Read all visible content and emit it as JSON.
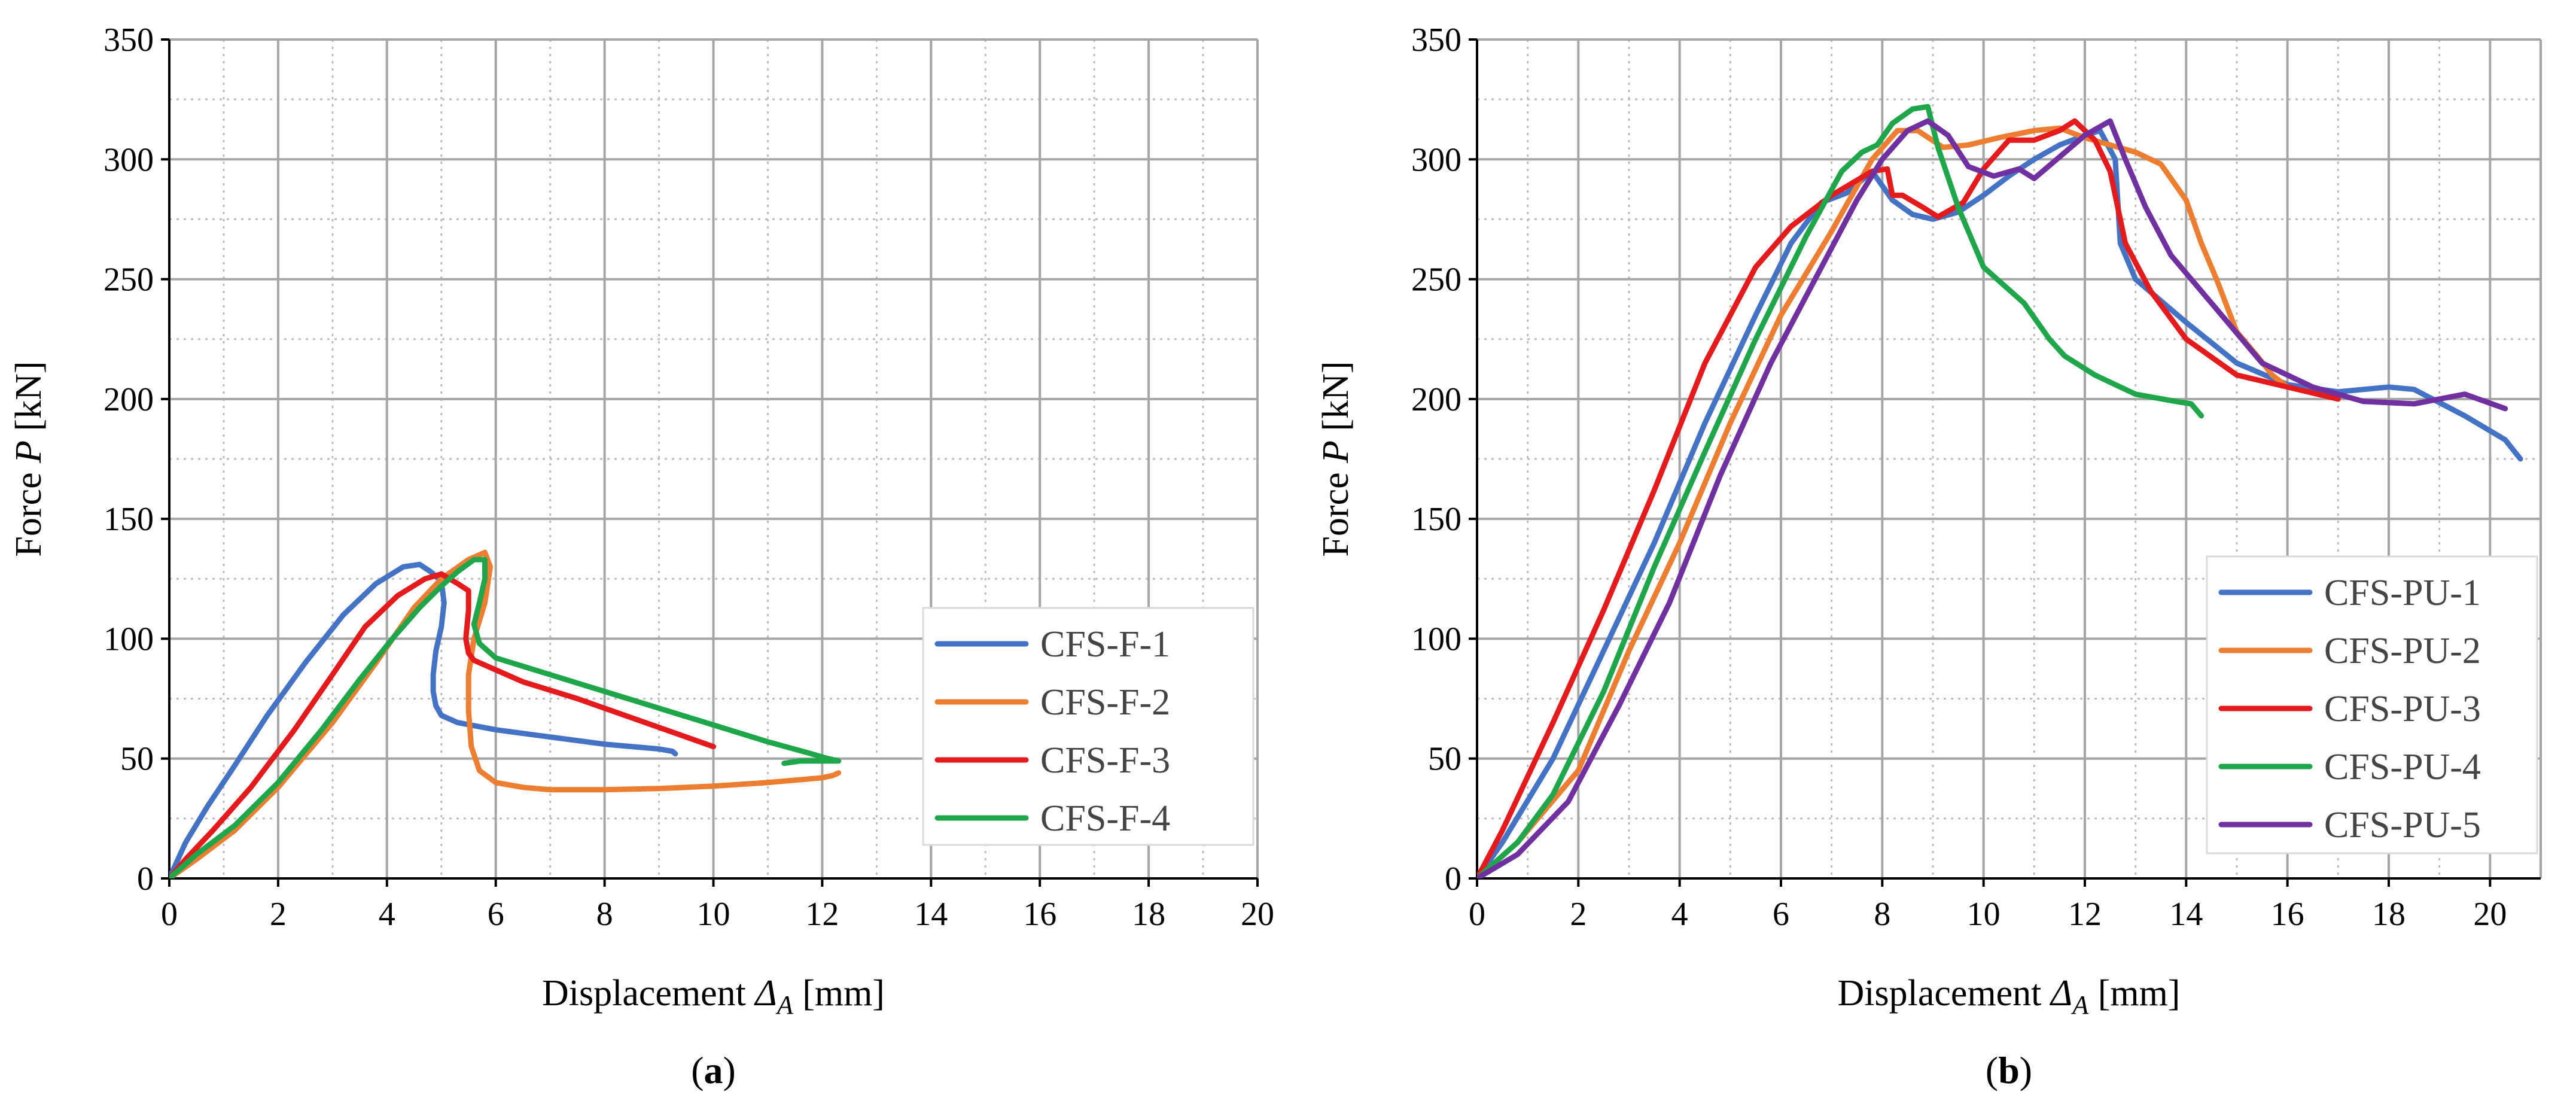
{
  "chart_data": [
    {
      "type": "line",
      "panel_label": "(a)",
      "panel_letter": "a",
      "xlabel": "Displacement",
      "xsymbol": "Δ",
      "xsub": "A",
      "xunit": "[mm]",
      "ylabel": "Force",
      "ysymbol": "P",
      "yunit": "[kN]",
      "xlim": [
        0,
        20
      ],
      "ylim": [
        0,
        350
      ],
      "xticks": [
        0,
        2,
        4,
        6,
        8,
        10,
        12,
        14,
        16,
        18,
        20
      ],
      "yticks": [
        0,
        50,
        100,
        150,
        200,
        250,
        300,
        350
      ],
      "grid": true,
      "legend_position": "bottom-right",
      "series": [
        {
          "name": "CFS-F-1",
          "color": "#4472C4",
          "x": [
            0,
            0.3,
            0.7,
            1.2,
            1.8,
            2.5,
            3.2,
            3.8,
            4.3,
            4.6,
            4.8,
            5.0,
            5.05,
            5.0,
            4.9,
            4.85,
            4.85,
            4.9,
            5.0,
            5.3,
            6.0,
            7.0,
            8.0,
            9.0,
            9.25,
            9.3
          ],
          "y": [
            0,
            15,
            30,
            47,
            68,
            90,
            110,
            123,
            130,
            131,
            128,
            124,
            115,
            105,
            95,
            85,
            78,
            72,
            68,
            65,
            62,
            59,
            56,
            54,
            53,
            52
          ]
        },
        {
          "name": "CFS-F-2",
          "color": "#ED7D31",
          "x": [
            0,
            0.5,
            1.2,
            2.0,
            3.0,
            3.8,
            4.5,
            5.0,
            5.5,
            5.8,
            5.9,
            5.8,
            5.6,
            5.5,
            5.5,
            5.55,
            5.7,
            6.0,
            6.5,
            7.0,
            8.0,
            9.0,
            10.0,
            11.0,
            11.5,
            12.0,
            12.2,
            12.3
          ],
          "y": [
            0,
            8,
            20,
            38,
            65,
            90,
            113,
            125,
            133,
            136,
            130,
            115,
            100,
            85,
            70,
            55,
            45,
            40,
            38,
            37,
            37,
            37.5,
            38.5,
            40,
            41,
            42,
            43,
            44
          ]
        },
        {
          "name": "CFS-F-3",
          "color": "#E41A1C",
          "x": [
            0,
            0.3,
            0.8,
            1.5,
            2.3,
            3.0,
            3.6,
            4.2,
            4.7,
            5.0,
            5.3,
            5.5,
            5.5,
            5.45,
            5.5,
            5.6,
            6.0,
            6.5,
            7.5,
            8.5,
            9.5,
            10.0
          ],
          "y": [
            0,
            8,
            20,
            38,
            62,
            85,
            105,
            118,
            125,
            127,
            123,
            120,
            112,
            100,
            94,
            91,
            87,
            82,
            75,
            67,
            59,
            55
          ]
        },
        {
          "name": "CFS-F-4",
          "color": "#1FA64A",
          "x": [
            0,
            0.5,
            1.2,
            2.0,
            2.8,
            3.5,
            4.1,
            4.6,
            5.0,
            5.3,
            5.6,
            5.8,
            5.8,
            5.7,
            5.6,
            5.7,
            6.0,
            7.0,
            8.0,
            9.0,
            10.0,
            11.0,
            11.8,
            12.1,
            12.3,
            11.6,
            11.3
          ],
          "y": [
            0,
            10,
            22,
            40,
            62,
            83,
            100,
            113,
            122,
            128,
            133,
            133,
            125,
            115,
            106,
            98,
            92,
            85,
            78,
            71,
            64,
            57,
            52,
            50,
            49,
            49,
            48
          ]
        }
      ],
      "annotations": []
    },
    {
      "type": "line",
      "panel_label": "(b)",
      "panel_letter": "b",
      "xlabel": "Displacement",
      "xsymbol": "Δ",
      "xsub": "A",
      "xunit": "[mm]",
      "ylabel": "Force",
      "ysymbol": "P",
      "yunit": "[kN]",
      "xlim": [
        0,
        21
      ],
      "ylim": [
        0,
        350
      ],
      "xticks": [
        0,
        2,
        4,
        6,
        8,
        10,
        12,
        14,
        16,
        18,
        20
      ],
      "yticks": [
        0,
        50,
        100,
        150,
        200,
        250,
        300,
        350
      ],
      "grid": true,
      "legend_position": "bottom-right",
      "series": [
        {
          "name": "CFS-PU-1",
          "color": "#4472C4",
          "x": [
            0,
            0.5,
            1.5,
            2.5,
            3.5,
            4.5,
            5.5,
            6.2,
            6.8,
            7.3,
            7.8,
            8.2,
            8.6,
            9.0,
            9.5,
            10.0,
            10.5,
            11.0,
            11.5,
            12.0,
            12.3,
            12.6,
            12.7,
            13.0,
            14.0,
            15.0,
            16.0,
            17.0,
            18.0,
            18.5,
            19.5,
            20.3,
            20.6
          ],
          "y": [
            0,
            15,
            50,
            95,
            140,
            190,
            235,
            265,
            282,
            286,
            295,
            283,
            277,
            275,
            278,
            285,
            293,
            300,
            306,
            310,
            312,
            300,
            265,
            250,
            232,
            215,
            206,
            203,
            205,
            204,
            193,
            183,
            175
          ]
        },
        {
          "name": "CFS-PU-2",
          "color": "#ED7D31",
          "x": [
            0,
            0.8,
            2.0,
            3.0,
            4.0,
            5.0,
            6.0,
            7.0,
            7.8,
            8.3,
            8.7,
            9.2,
            9.7,
            10.3,
            11.0,
            11.5,
            12.0,
            12.5,
            13.0,
            13.5,
            14.0,
            14.3,
            14.6,
            15.0,
            15.4,
            15.7,
            16.0
          ],
          "y": [
            0,
            15,
            45,
            95,
            140,
            190,
            235,
            270,
            300,
            312,
            312,
            305,
            306,
            309,
            312,
            313,
            309,
            306,
            303,
            298,
            283,
            265,
            250,
            228,
            218,
            210,
            205
          ]
        },
        {
          "name": "CFS-PU-3",
          "color": "#E41A1C",
          "x": [
            0,
            0.5,
            1.5,
            2.5,
            3.5,
            4.5,
            5.5,
            6.2,
            7.0,
            7.8,
            8.1,
            8.2,
            8.4,
            8.8,
            9.1,
            9.6,
            10.0,
            10.5,
            11.0,
            11.5,
            11.8,
            12.2,
            12.5,
            12.8,
            13.3,
            14.0,
            15.0,
            16.0,
            17.0
          ],
          "y": [
            0,
            20,
            65,
            112,
            162,
            215,
            255,
            272,
            285,
            295,
            296,
            285,
            285,
            280,
            276,
            282,
            296,
            308,
            308,
            312,
            316,
            308,
            295,
            265,
            245,
            225,
            210,
            205,
            200
          ]
        },
        {
          "name": "CFS-PU-4",
          "color": "#1FA64A",
          "x": [
            0,
            0.8,
            1.5,
            2.5,
            3.5,
            4.5,
            5.5,
            6.5,
            7.2,
            7.6,
            7.9,
            8.2,
            8.6,
            8.9,
            9.1,
            9.5,
            10.0,
            10.8,
            11.3,
            11.6,
            12.2,
            13.0,
            13.8,
            14.1,
            14.3
          ],
          "y": [
            0,
            15,
            35,
            78,
            130,
            178,
            225,
            268,
            295,
            303,
            306,
            315,
            321,
            322,
            305,
            280,
            255,
            240,
            225,
            218,
            210,
            202,
            199,
            198,
            193
          ]
        },
        {
          "name": "CFS-PU-5",
          "color": "#7030A0",
          "x": [
            0,
            0.8,
            1.8,
            2.8,
            3.8,
            4.8,
            5.8,
            6.8,
            7.5,
            8.0,
            8.5,
            8.9,
            9.3,
            9.7,
            10.2,
            10.7,
            11.0,
            11.5,
            12.0,
            12.5,
            12.8,
            13.2,
            13.7,
            14.5,
            15.5,
            16.5,
            17.5,
            18.5,
            19.5,
            20.3
          ],
          "y": [
            0,
            10,
            32,
            72,
            115,
            168,
            215,
            255,
            283,
            300,
            312,
            316,
            310,
            297,
            293,
            296,
            292,
            301,
            310,
            316,
            300,
            280,
            260,
            240,
            215,
            205,
            199,
            198,
            202,
            196
          ]
        }
      ],
      "annotations": []
    }
  ]
}
